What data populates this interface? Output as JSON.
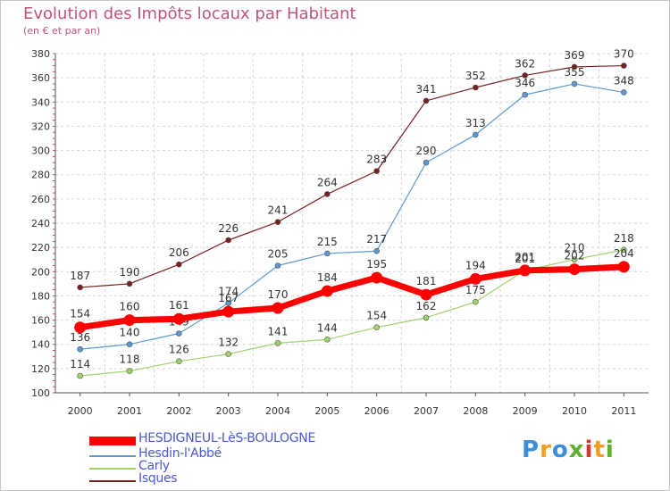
{
  "chart_data": {
    "type": "line",
    "title": "Evolution des Impôts locaux par Habitant",
    "subtitle": "(en € et par an)",
    "xlabel": "",
    "ylabel": "",
    "categories": [
      "2000",
      "2001",
      "2002",
      "2003",
      "2004",
      "2005",
      "2006",
      "2007",
      "2008",
      "2009",
      "2010",
      "2011"
    ],
    "ylim": [
      100,
      380
    ],
    "yticks": [
      100,
      120,
      140,
      160,
      180,
      200,
      220,
      240,
      260,
      280,
      300,
      320,
      340,
      360,
      380
    ],
    "series": [
      {
        "name": "Isques",
        "color": "#7a1f1f",
        "values": [
          187,
          190,
          206,
          226,
          241,
          264,
          283,
          341,
          352,
          362,
          369,
          370
        ],
        "labels": [
          "187",
          "190",
          "206",
          "226",
          "241",
          "264",
          "283",
          "341",
          "352",
          "362",
          "369",
          "370"
        ]
      },
      {
        "name": "Hesdin-l'Abbé",
        "color": "#5a9ad0",
        "values": [
          136,
          140,
          149,
          174,
          205,
          215,
          217,
          290,
          313,
          346,
          355,
          348
        ],
        "labels": [
          "136",
          "140",
          "149",
          "174",
          "205",
          "215",
          "217",
          "290",
          "313",
          "346",
          "355",
          "348"
        ]
      },
      {
        "name": "Carly",
        "color": "#9ed36a",
        "values": [
          114,
          118,
          126,
          132,
          141,
          144,
          154,
          162,
          175,
          201,
          210,
          218
        ],
        "labels": [
          "114",
          "118",
          "126",
          "132",
          "141",
          "144",
          "154",
          "162",
          "175",
          "201",
          "210",
          "218"
        ]
      },
      {
        "name": "HESDIGNEUL-LèS-BOULOGNE",
        "color": "#ff0000",
        "values": [
          154,
          160,
          161,
          167,
          170,
          184,
          195,
          181,
          194,
          201,
          202,
          204
        ],
        "labels": [
          "154",
          "160",
          "161",
          "167",
          "170",
          "184",
          "195",
          "181",
          "194",
          "201",
          "202",
          "204"
        ]
      }
    ],
    "legend": [
      {
        "name": "HESDIGNEUL-LèS-BOULOGNE",
        "color": "#ff0000"
      },
      {
        "name": "Hesdin-l'Abbé",
        "color": "#5a9ad0"
      },
      {
        "name": "Carly",
        "color": "#9ed36a"
      },
      {
        "name": "Isques",
        "color": "#7a1f1f"
      }
    ]
  },
  "branding": {
    "logo_text": "Proxiti",
    "logo_colors": [
      "#3a8fd8",
      "#f0a020",
      "#3a8fd8",
      "#60b030",
      "#e03030",
      "#f0a020",
      "#60b030"
    ]
  }
}
